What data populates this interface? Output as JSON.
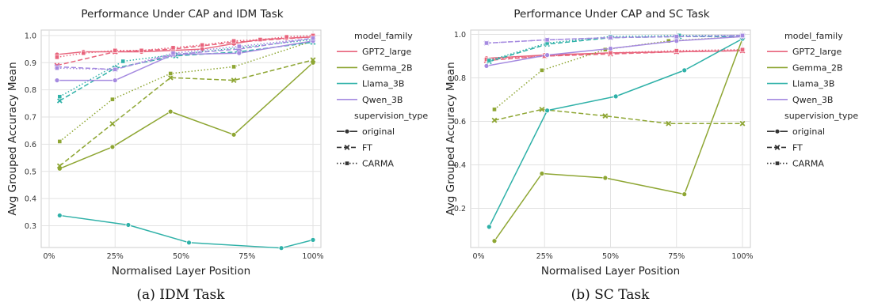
{
  "chart_data": [
    {
      "type": "line",
      "title": "Performance Under CAP and IDM Task",
      "xlabel": "Normalised Layer Position",
      "ylabel": "Avg Grouped Accuracy Mean",
      "caption": "(a)  IDM Task",
      "xlim": [
        -3,
        103
      ],
      "ylim": [
        0.22,
        1.02
      ],
      "xticks": [
        0,
        25,
        50,
        75,
        100
      ],
      "xtick_labels": [
        "0%",
        "25%",
        "50%",
        "75%",
        "100%"
      ],
      "yticks": [
        0.3,
        0.4,
        0.5,
        0.6,
        0.7,
        0.8,
        0.9,
        1.0
      ],
      "ytick_labels": [
        "0.3",
        "0.4",
        "0.5",
        "0.6",
        "0.7",
        "0.8",
        "0.9",
        "1.0"
      ],
      "grid": true,
      "legend_placement": "outside-right",
      "series": [
        {
          "model": "GPT2_large",
          "supervision": "original",
          "color": "#e8647c",
          "x": [
            3,
            13,
            25,
            35,
            47,
            58,
            70,
            80,
            90,
            100
          ],
          "y": [
            0.93,
            0.94,
            0.94,
            0.94,
            0.945,
            0.95,
            0.97,
            0.985,
            0.99,
            0.995
          ]
        },
        {
          "model": "GPT2_large",
          "supervision": "FT",
          "color": "#e8647c",
          "x": [
            3,
            25,
            47,
            70,
            100
          ],
          "y": [
            0.89,
            0.94,
            0.95,
            0.975,
            0.995
          ]
        },
        {
          "model": "GPT2_large",
          "supervision": "CARMA",
          "color": "#e8647c",
          "x": [
            3,
            13,
            25,
            35,
            47,
            58,
            70,
            80,
            90,
            100
          ],
          "y": [
            0.92,
            0.935,
            0.945,
            0.945,
            0.955,
            0.965,
            0.98,
            0.985,
            0.995,
            1.0
          ]
        },
        {
          "model": "Gemma_2B",
          "supervision": "original",
          "color": "#8ea633",
          "x": [
            4,
            24,
            46,
            70,
            100
          ],
          "y": [
            0.51,
            0.59,
            0.72,
            0.635,
            0.9
          ]
        },
        {
          "model": "Gemma_2B",
          "supervision": "FT",
          "color": "#8ea633",
          "x": [
            4,
            24,
            46,
            70,
            100
          ],
          "y": [
            0.52,
            0.675,
            0.845,
            0.835,
            0.91
          ]
        },
        {
          "model": "Gemma_2B",
          "supervision": "CARMA",
          "color": "#8ea633",
          "x": [
            4,
            24,
            46,
            70,
            100
          ],
          "y": [
            0.61,
            0.765,
            0.86,
            0.885,
            0.98
          ]
        },
        {
          "model": "Llama_3B",
          "supervision": "original",
          "color": "#2fb1a8",
          "x": [
            4,
            30,
            53,
            88,
            100
          ],
          "y": [
            0.338,
            0.303,
            0.238,
            0.218,
            0.248
          ]
        },
        {
          "model": "Llama_3B",
          "supervision": "FT",
          "color": "#2fb1a8",
          "x": [
            4,
            25,
            48,
            72,
            100
          ],
          "y": [
            0.76,
            0.88,
            0.925,
            0.94,
            0.975
          ]
        },
        {
          "model": "Llama_3B",
          "supervision": "CARMA",
          "color": "#2fb1a8",
          "x": [
            4,
            28,
            48,
            72,
            100
          ],
          "y": [
            0.775,
            0.905,
            0.93,
            0.955,
            0.985
          ]
        },
        {
          "model": "Qwen_3B",
          "supervision": "original",
          "color": "#a58ae0",
          "x": [
            3,
            25,
            47,
            72,
            100
          ],
          "y": [
            0.835,
            0.835,
            0.93,
            0.935,
            0.98
          ]
        },
        {
          "model": "Qwen_3B",
          "supervision": "FT",
          "color": "#a58ae0",
          "x": [
            3,
            25,
            47,
            72,
            100
          ],
          "y": [
            0.885,
            0.875,
            0.93,
            0.95,
            0.99
          ]
        },
        {
          "model": "Qwen_3B",
          "supervision": "CARMA",
          "color": "#a58ae0",
          "x": [
            3,
            25,
            47,
            72,
            100
          ],
          "y": [
            0.88,
            0.875,
            0.935,
            0.96,
            0.99
          ]
        }
      ]
    },
    {
      "type": "line",
      "title": "Performance Under CAP and SC Task",
      "xlabel": "Normalised Layer Position",
      "ylabel": "Avg Grouped Accuracy Mean",
      "caption": "(b)  SC Task",
      "xlim": [
        -3,
        103
      ],
      "ylim": [
        0.02,
        1.02
      ],
      "xticks": [
        0,
        25,
        50,
        75,
        100
      ],
      "xtick_labels": [
        "0%",
        "25%",
        "50%",
        "75%",
        "100%"
      ],
      "yticks": [
        0.2,
        0.4,
        0.6,
        0.8,
        1.0
      ],
      "ytick_labels": [
        "0.2",
        "0.4",
        "0.6",
        "0.8",
        "1.0"
      ],
      "grid": true,
      "legend_placement": "outside-right",
      "series": [
        {
          "model": "GPT2_large",
          "supervision": "original",
          "color": "#e8647c",
          "x": [
            3,
            25,
            50,
            75,
            100
          ],
          "y": [
            0.89,
            0.905,
            0.915,
            0.92,
            0.925
          ]
        },
        {
          "model": "GPT2_large",
          "supervision": "FT",
          "color": "#e8647c",
          "x": [
            3,
            25,
            50,
            75,
            100
          ],
          "y": [
            0.88,
            0.9,
            0.91,
            0.92,
            0.925
          ]
        },
        {
          "model": "GPT2_large",
          "supervision": "CARMA",
          "color": "#e8647c",
          "x": [
            3,
            25,
            50,
            75,
            100
          ],
          "y": [
            0.885,
            0.9,
            0.915,
            0.925,
            0.93
          ]
        },
        {
          "model": "Gemma_2B",
          "supervision": "original",
          "color": "#8ea633",
          "x": [
            6,
            24,
            48,
            78,
            100
          ],
          "y": [
            0.05,
            0.36,
            0.34,
            0.265,
            0.98
          ]
        },
        {
          "model": "Gemma_2B",
          "supervision": "FT",
          "color": "#8ea633",
          "x": [
            6,
            24,
            48,
            72,
            100
          ],
          "y": [
            0.605,
            0.655,
            0.625,
            0.59,
            0.59
          ]
        },
        {
          "model": "Gemma_2B",
          "supervision": "CARMA",
          "color": "#8ea633",
          "x": [
            6,
            24,
            48,
            72,
            100
          ],
          "y": [
            0.655,
            0.835,
            0.93,
            0.97,
            0.99
          ]
        },
        {
          "model": "Llama_3B",
          "supervision": "original",
          "color": "#2fb1a8",
          "x": [
            4,
            26,
            52,
            78,
            100
          ],
          "y": [
            0.115,
            0.65,
            0.715,
            0.835,
            0.98
          ]
        },
        {
          "model": "Llama_3B",
          "supervision": "FT",
          "color": "#2fb1a8",
          "x": [
            4,
            26,
            50,
            76,
            100
          ],
          "y": [
            0.875,
            0.955,
            0.985,
            0.99,
            0.99
          ]
        },
        {
          "model": "Llama_3B",
          "supervision": "CARMA",
          "color": "#2fb1a8",
          "x": [
            4,
            26,
            50,
            76,
            100
          ],
          "y": [
            0.88,
            0.96,
            0.99,
            0.995,
            0.995
          ]
        },
        {
          "model": "Qwen_3B",
          "supervision": "original",
          "color": "#a58ae0",
          "x": [
            3,
            26,
            50,
            75,
            100
          ],
          "y": [
            0.855,
            0.905,
            0.935,
            0.97,
            0.99
          ]
        },
        {
          "model": "Qwen_3B",
          "supervision": "FT",
          "color": "#a58ae0",
          "x": [
            3,
            26,
            50,
            75,
            100
          ],
          "y": [
            0.96,
            0.975,
            0.985,
            0.99,
            0.995
          ]
        },
        {
          "model": "Qwen_3B",
          "supervision": "CARMA",
          "color": "#a58ae0",
          "x": [
            3,
            26,
            50,
            75,
            100
          ],
          "y": [
            0.96,
            0.975,
            0.985,
            0.99,
            0.995
          ]
        }
      ]
    }
  ],
  "legend": {
    "hue_title": "model_family",
    "models": [
      {
        "name": "GPT2_large",
        "color": "#e8647c"
      },
      {
        "name": "Gemma_2B",
        "color": "#8ea633"
      },
      {
        "name": "Llama_3B",
        "color": "#2fb1a8"
      },
      {
        "name": "Qwen_3B",
        "color": "#a58ae0"
      }
    ],
    "style_title": "supervision_type",
    "styles": [
      {
        "name": "original",
        "dash": "solid",
        "marker": "circle"
      },
      {
        "name": "FT",
        "dash": "dashed",
        "marker": "x"
      },
      {
        "name": "CARMA",
        "dash": "dotted",
        "marker": "square"
      }
    ]
  }
}
